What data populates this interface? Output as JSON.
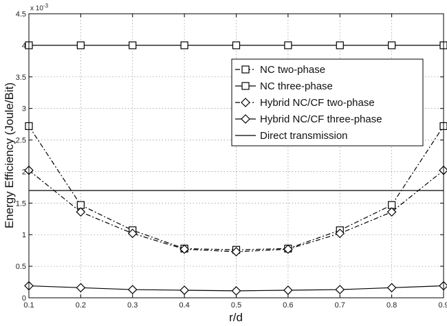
{
  "chart_data": {
    "type": "line",
    "title": "",
    "xlabel": "r/d",
    "ylabel": "Energy Efficiency (Joule/Bit)",
    "y_exponent_label": "x 10",
    "y_exponent_power": "-3",
    "x": [
      0.1,
      0.2,
      0.3,
      0.4,
      0.5,
      0.6,
      0.7,
      0.8,
      0.9
    ],
    "xlim": [
      0.1,
      0.9
    ],
    "ylim": [
      0,
      4.5
    ],
    "x_ticks": [
      "0.1",
      "0.2",
      "0.3",
      "0.4",
      "0.5",
      "0.6",
      "0.7",
      "0.8",
      "0.9"
    ],
    "y_ticks": [
      "0",
      "0.5",
      "1",
      "1.5",
      "2",
      "2.5",
      "3",
      "3.5",
      "4",
      "4.5"
    ],
    "grid": true,
    "legend_position": "top-right",
    "series": [
      {
        "name": "NC two-phase",
        "marker": "square",
        "line": "dashdot",
        "values": [
          2.72,
          1.47,
          1.07,
          0.78,
          0.76,
          0.78,
          1.07,
          1.47,
          2.72
        ]
      },
      {
        "name": "NC three-phase",
        "marker": "square",
        "line": "solid",
        "values": [
          4.0,
          4.0,
          4.0,
          4.0,
          4.0,
          4.0,
          4.0,
          4.0,
          4.0
        ]
      },
      {
        "name": "Hybrid NC/CF two-phase",
        "marker": "diamond",
        "line": "dashdot",
        "values": [
          2.02,
          1.36,
          1.02,
          0.77,
          0.73,
          0.77,
          1.02,
          1.36,
          2.02
        ]
      },
      {
        "name": "Hybrid NC/CF three-phase",
        "marker": "diamond",
        "line": "solid",
        "values": [
          0.19,
          0.16,
          0.13,
          0.12,
          0.11,
          0.12,
          0.13,
          0.16,
          0.19
        ]
      },
      {
        "name": "Direct transmission",
        "marker": "none",
        "line": "solid",
        "values": [
          1.7,
          1.7,
          1.7,
          1.7,
          1.7,
          1.7,
          1.7,
          1.7,
          1.7
        ]
      }
    ]
  }
}
